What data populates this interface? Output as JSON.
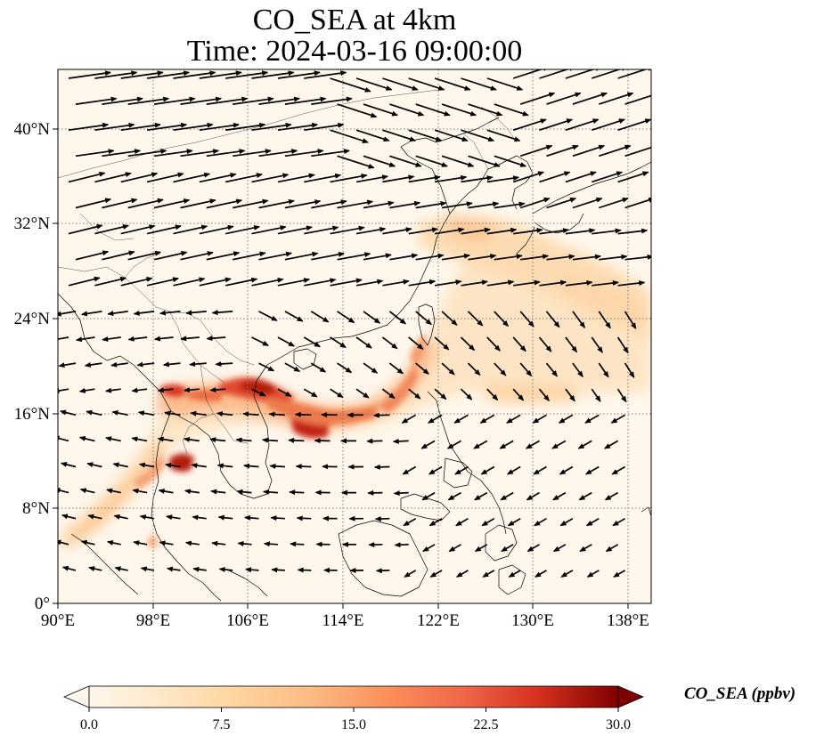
{
  "title": {
    "line1": "CO_SEA at 4km",
    "line2": "Time: 2024-03-16 09:00:00"
  },
  "map": {
    "type": "heatmap with wind vectors",
    "lon_range": [
      90,
      140
    ],
    "lat_range": [
      0,
      45
    ],
    "x_ticks": [
      "90°E",
      "98°E",
      "106°E",
      "114°E",
      "122°E",
      "130°E",
      "138°E"
    ],
    "y_ticks": [
      "0°",
      "8°N",
      "16°N",
      "24°N",
      "32°N",
      "40°N"
    ],
    "gridlines": "dotted",
    "colormap": "OrRd",
    "colors": {
      "low": "#fff7ec",
      "mid": "#fdd49e",
      "mid2": "#fc8d59",
      "high": "#d7301f",
      "max": "#7f0000"
    }
  },
  "chart_data": {
    "type": "heatmap",
    "variable": "CO_SEA",
    "units": "ppbv",
    "colorbar_range": [
      0.0,
      30.0
    ],
    "colorbar_ticks": [
      "0.0",
      "7.5",
      "15.0",
      "22.5",
      "30.0"
    ],
    "colorbar_label": "CO_SEA (ppbv)",
    "plumes": [
      {
        "lon": 106.5,
        "lat": 18.0,
        "value": 27
      },
      {
        "lon": 111.5,
        "lat": 15.5,
        "value": 28
      },
      {
        "lon": 99.5,
        "lat": 12.0,
        "value": 26
      },
      {
        "lon": 100.0,
        "lat": 18.0,
        "value": 22
      },
      {
        "lon": 119.0,
        "lat": 21.0,
        "value": 14
      },
      {
        "lon": 126.0,
        "lat": 30.0,
        "value": 8
      },
      {
        "lon": 133.0,
        "lat": 24.0,
        "value": 7
      }
    ]
  }
}
